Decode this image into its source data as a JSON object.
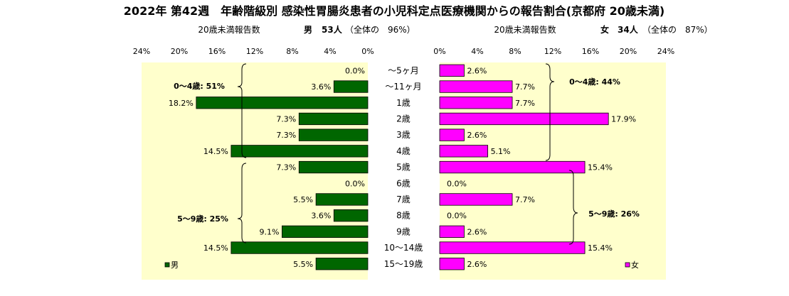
{
  "title": "2022年 第42週　年齢階級別 感染性胃腸炎患者の小児科定点医療機関からの報告割合(京都府 20歳未満)",
  "left_header": {
    "caption": "20歳未満報告数",
    "gender": "男",
    "count": "53人",
    "share": "（全体の　96%）"
  },
  "right_header": {
    "caption": "20歳未満報告数",
    "gender": "女",
    "count": "34人",
    "share": "（全体の　87%）"
  },
  "left_ticks": [
    "24%",
    "20%",
    "16%",
    "12%",
    "8%",
    "4%",
    "0%"
  ],
  "right_ticks": [
    "0%",
    "4%",
    "8%",
    "12%",
    "16%",
    "20%",
    "24%"
  ],
  "groups": {
    "male_0_4": "0～4歳: 51%",
    "male_5_9": "5～9歳: 25%",
    "female_0_4": "0～4歳: 44%",
    "female_5_9": "5～9歳: 26%"
  },
  "legend": {
    "male": "男",
    "female": "女"
  },
  "colors": {
    "male": "#006600",
    "female": "#ff00ff",
    "panel": "#ffffcc",
    "axis": "#000000"
  },
  "chart_data": {
    "type": "bar",
    "orientation": "horizontal-butterfly",
    "categories": [
      "～5ヶ月",
      "～11ヶ月",
      "1歳",
      "2歳",
      "3歳",
      "4歳",
      "5歳",
      "6歳",
      "7歳",
      "8歳",
      "9歳",
      "10～14歳",
      "15～19歳"
    ],
    "series": [
      {
        "name": "男",
        "values": [
          0.0,
          3.6,
          18.2,
          7.3,
          7.3,
          14.5,
          7.3,
          0.0,
          5.5,
          3.6,
          9.1,
          14.5,
          5.5
        ],
        "labels": [
          "0.0%",
          "3.6%",
          "18.2%",
          "7.3%",
          "7.3%",
          "14.5%",
          "7.3%",
          "0.0%",
          "5.5%",
          "3.6%",
          "9.1%",
          "14.5%",
          "5.5%"
        ]
      },
      {
        "name": "女",
        "values": [
          2.6,
          7.7,
          7.7,
          17.9,
          2.6,
          5.1,
          15.4,
          0.0,
          7.7,
          0.0,
          2.6,
          15.4,
          2.6
        ],
        "labels": [
          "2.6%",
          "7.7%",
          "7.7%",
          "17.9%",
          "2.6%",
          "5.1%",
          "15.4%",
          "0.0%",
          "7.7%",
          "0.0%",
          "2.6%",
          "15.4%",
          "2.6%"
        ]
      }
    ],
    "xlim": [
      0,
      24
    ],
    "unit": "%",
    "legend_position": "bottom-corners"
  }
}
